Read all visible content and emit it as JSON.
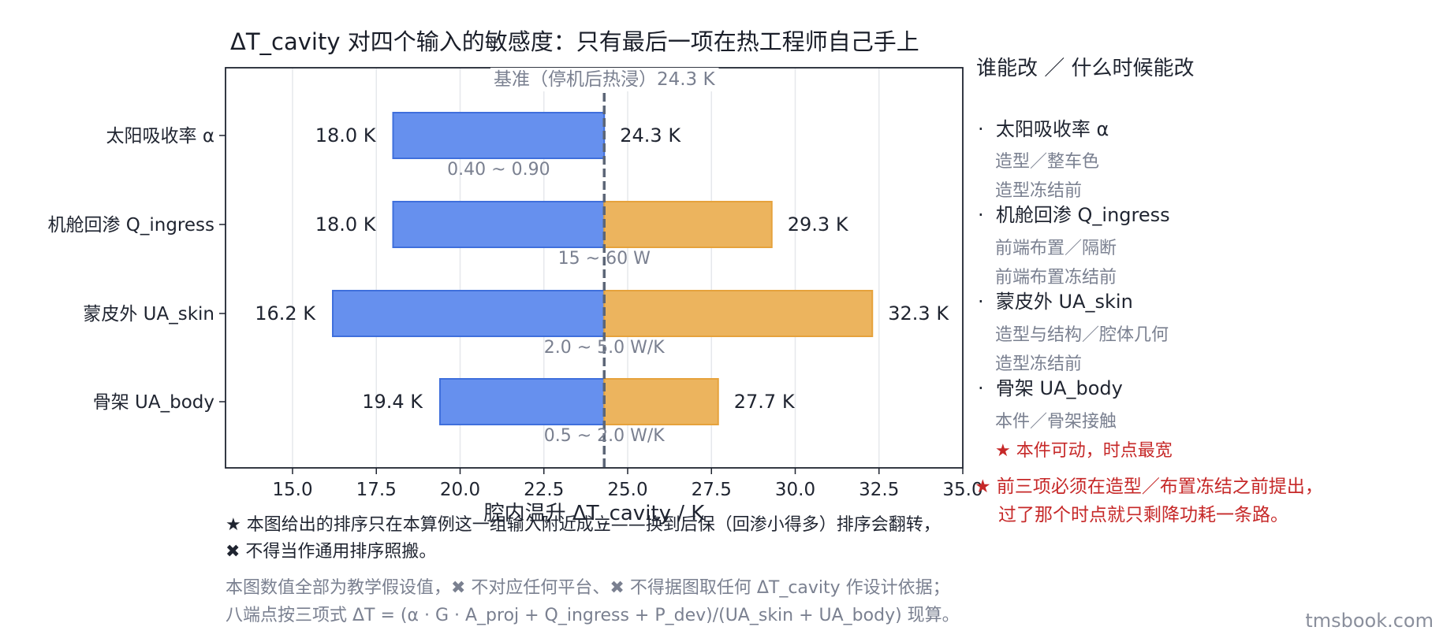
{
  "chart_data": {
    "type": "bar",
    "subtype": "tornado",
    "title": "ΔT_cavity 对四个输入的敏感度：只有最后一项在热工程师自己手上",
    "xlabel": "腔内温升 ΔT_cavity / K",
    "ylabel": "",
    "xlim": [
      13,
      35
    ],
    "xticks": [
      15.0,
      17.5,
      20.0,
      22.5,
      25.0,
      27.5,
      30.0,
      32.5,
      35.0
    ],
    "xtick_labels": [
      "15.0",
      "17.5",
      "20.0",
      "22.5",
      "25.0",
      "27.5",
      "30.0",
      "32.5",
      "35.0"
    ],
    "grid": "vertical",
    "baseline": {
      "value": 24.3,
      "label": "基准（停机后热浸）24.3 K"
    },
    "series_colors": {
      "low": "#6690ee",
      "high": "#ecb45e",
      "baseline": "#5c6677"
    },
    "categories": [
      "太阳吸收率 α",
      "机舱回渗 Q_ingress",
      "蒙皮外 UA_skin",
      "骨架 UA_body"
    ],
    "items": [
      {
        "category": "太阳吸收率 α",
        "low": 18.0,
        "high": 24.3,
        "low_label": "18.0 K",
        "high_label": "24.3 K",
        "range_label": "0.40 ~ 0.90"
      },
      {
        "category": "机舱回渗 Q_ingress",
        "low": 18.0,
        "high": 29.3,
        "low_label": "18.0 K",
        "high_label": "29.3 K",
        "range_label": "15 ~ 60 W"
      },
      {
        "category": "蒙皮外 UA_skin",
        "low": 16.2,
        "high": 32.3,
        "low_label": "16.2 K",
        "high_label": "32.3 K",
        "range_label": "2.0 ~ 5.0 W/K"
      },
      {
        "category": "骨架 UA_body",
        "low": 19.4,
        "high": 27.7,
        "low_label": "19.4 K",
        "high_label": "27.7 K",
        "range_label": "0.5 ~ 2.0 W/K"
      }
    ]
  },
  "side": {
    "title": "谁能改 ／ 什么时候能改",
    "bullet": "·",
    "items": [
      {
        "label": "太阳吸收率 α",
        "who": "造型／整车色",
        "when": "造型冻结前"
      },
      {
        "label": "机舱回渗 Q_ingress",
        "who": "前端布置／隔断",
        "when": "前端布置冻结前"
      },
      {
        "label": "蒙皮外 UA_skin",
        "who": "造型与结构／腔体几何",
        "when": "造型冻结前"
      },
      {
        "label": "骨架 UA_body",
        "who": "本件／骨架接触",
        "when": "★ 本件可动，时点最宽"
      }
    ],
    "warning_line1": "★ 前三项必须在造型／布置冻结之前提出，",
    "warning_line2": "过了那个时点就只剩降功耗一条路。"
  },
  "notes": {
    "line1": "★ 本图给出的排序只在本算例这一组输入附近成立——换到后保（回渗小得多）排序会翻转，",
    "line2": "✖ 不得当作通用排序照搬。"
  },
  "footer": {
    "line1": "本图数值全部为教学假设值，✖ 不对应任何平台、✖ 不得据图取任何 ΔT_cavity 作设计依据；",
    "line2": "八端点按三项式 ΔT = (α · G · A_proj + Q_ingress + P_dev)/(UA_skin + UA_body) 现算。"
  },
  "credit": "tmsbook.com"
}
